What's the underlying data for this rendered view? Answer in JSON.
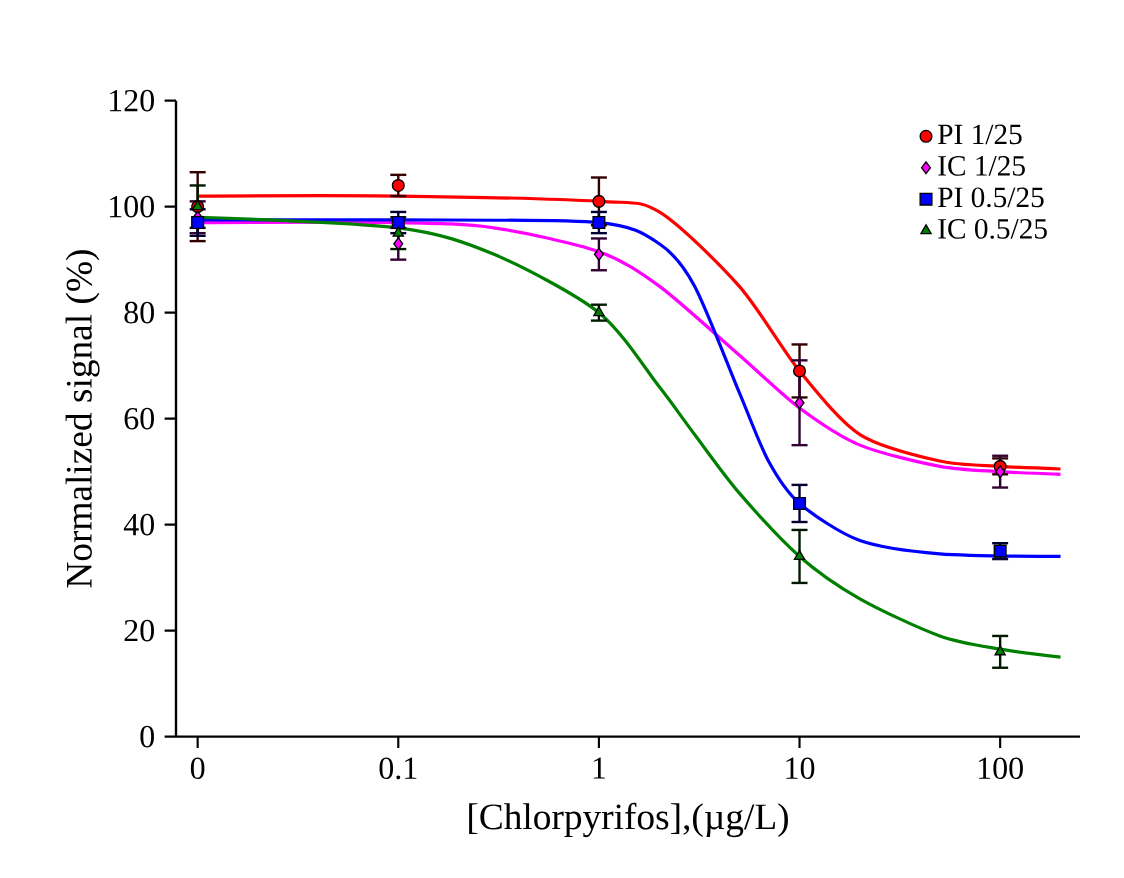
{
  "chart_data": {
    "type": "scatter",
    "xlabel": "[Chlorpyrifos],(µg/L)",
    "ylabel": "Normalized signal (%)",
    "log": "x",
    "xlim": [
      0.0078,
      250
    ],
    "xticks": [
      {
        "value": 0.01,
        "label": "0"
      },
      {
        "value": 0.1,
        "label": "0.1"
      },
      {
        "value": 1,
        "label": "1"
      },
      {
        "value": 10,
        "label": "10"
      },
      {
        "value": 100,
        "label": "100"
      }
    ],
    "ylim": [
      0,
      120
    ],
    "yticks": [
      0,
      20,
      40,
      60,
      80,
      100,
      120
    ],
    "grid": false,
    "legend": "top right",
    "series": [
      {
        "type": "line",
        "color": "#ff0000",
        "marker": "none",
        "x": [
          0.01,
          0.1,
          1,
          2,
          5,
          10,
          20,
          50,
          100,
          200
        ],
        "values": [
          102,
          102,
          101,
          99,
          85,
          69,
          57,
          52,
          51,
          50.5
        ]
      },
      {
        "type": "line",
        "color": "#ff00ff",
        "marker": "none",
        "x": [
          0.01,
          0.1,
          0.3,
          1,
          2,
          5,
          10,
          20,
          50,
          100,
          200
        ],
        "values": [
          97,
          97,
          96,
          91.5,
          85,
          72,
          62,
          55,
          51,
          50,
          49.5
        ]
      },
      {
        "type": "line",
        "color": "#0000ff",
        "marker": "none",
        "x": [
          0.01,
          0.1,
          1,
          2,
          3,
          5,
          7,
          10,
          20,
          50,
          200
        ],
        "values": [
          97.5,
          97.5,
          97,
          93,
          85,
          65,
          52,
          44,
          37,
          34.5,
          34
        ]
      },
      {
        "type": "line",
        "color": "#008000",
        "marker": "none",
        "x": [
          0.01,
          0.1,
          0.3,
          1,
          2,
          3,
          5,
          10,
          20,
          50,
          100,
          200
        ],
        "values": [
          98,
          96,
          91,
          80,
          66,
          57,
          46,
          34,
          26,
          19,
          16.5,
          15
        ]
      },
      {
        "name": "PI 1/25",
        "color": "#ff0000",
        "marker": "circle",
        "x": [
          0.01,
          0.1,
          1,
          10,
          100
        ],
        "values": [
          100,
          104,
          101,
          69,
          51
        ],
        "errors": [
          6.5,
          2,
          4.5,
          5,
          1.5
        ]
      },
      {
        "name": "IC 1/25",
        "color": "#ff00ff",
        "marker": "diamond",
        "x": [
          0.01,
          0.1,
          1,
          10,
          100
        ],
        "values": [
          98,
          93,
          91,
          63,
          50
        ],
        "errors": [
          3,
          3,
          3,
          8,
          3
        ]
      },
      {
        "name": "PI 0.5/25",
        "color": "#0000ff",
        "marker": "square",
        "x": [
          0.01,
          0.1,
          1,
          10,
          100
        ],
        "values": [
          97,
          97,
          97,
          44,
          35
        ],
        "errors": [
          2.5,
          2,
          2,
          3.5,
          1.5
        ]
      },
      {
        "name": "IC 0.5/25",
        "color": "#008000",
        "marker": "triangle",
        "x": [
          0.01,
          0.1,
          1,
          10,
          100
        ],
        "values": [
          100,
          95,
          80,
          34,
          16
        ],
        "errors": [
          4,
          3,
          1.5,
          5,
          3
        ]
      }
    ]
  }
}
